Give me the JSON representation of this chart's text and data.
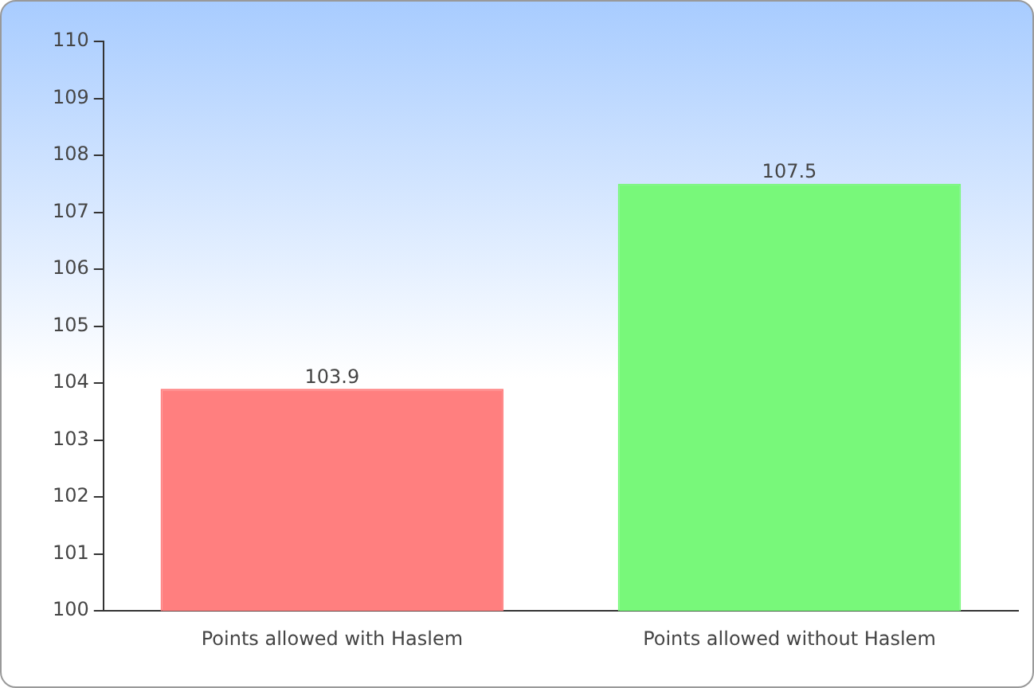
{
  "chart_data": {
    "type": "bar",
    "categories": [
      "Points allowed with Haslem",
      "Points allowed without Haslem"
    ],
    "values": [
      103.9,
      107.5
    ],
    "colors": [
      "#ff7f7f",
      "#78f87a"
    ],
    "ylim": [
      100,
      110
    ],
    "yticks": [
      100,
      101,
      102,
      103,
      104,
      105,
      106,
      107,
      108,
      109,
      110
    ],
    "data_labels": true,
    "grid": false,
    "legend": false
  }
}
